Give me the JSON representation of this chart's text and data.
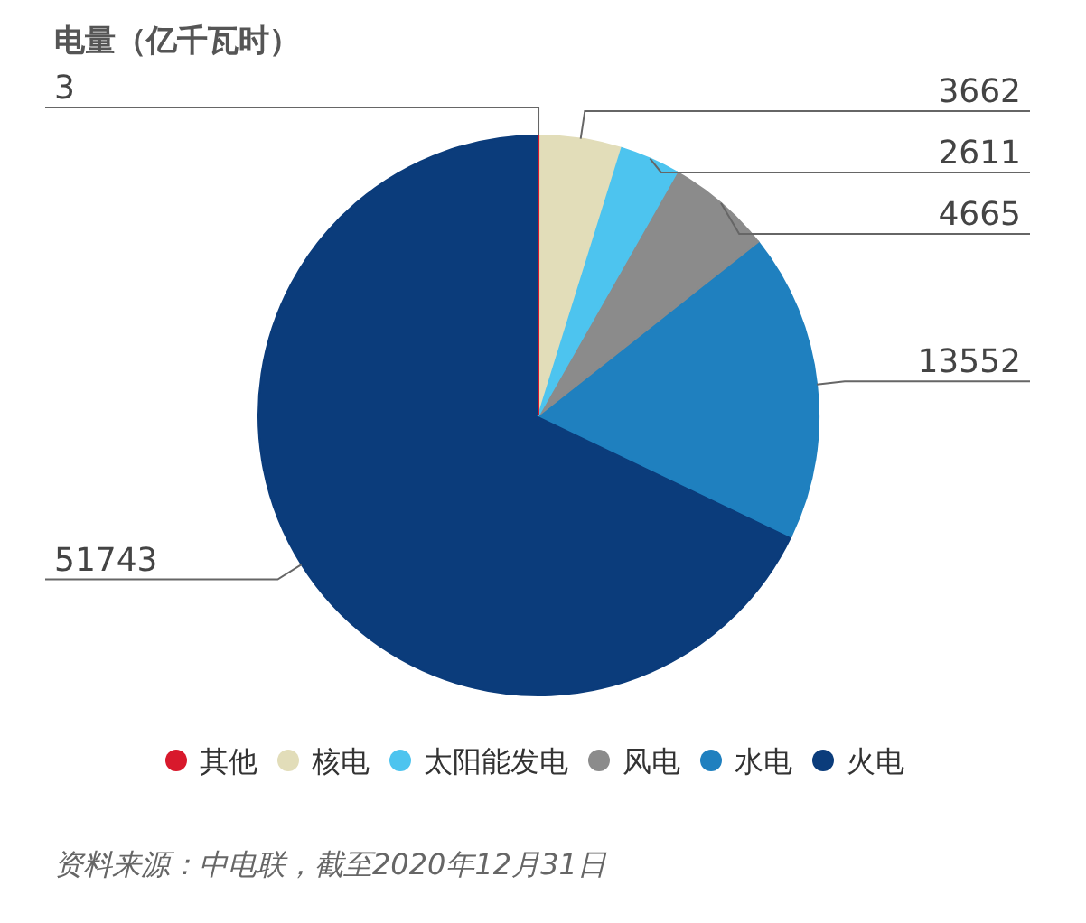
{
  "chart_data": {
    "type": "pie",
    "title": "电量（亿千瓦时）",
    "categories": [
      "其他",
      "核电",
      "太阳能发电",
      "风电",
      "水电",
      "火电"
    ],
    "values": [
      3,
      3662,
      2611,
      4665,
      13552,
      51743
    ],
    "colors": [
      "#d8192c",
      "#e2ddb9",
      "#4dc4ef",
      "#8b8b8b",
      "#1f80bf",
      "#0b3c7b"
    ],
    "data_labels": true,
    "legend": "bottom",
    "annotations": [
      "资料来源：中电联，截至2020年12月31日"
    ]
  }
}
